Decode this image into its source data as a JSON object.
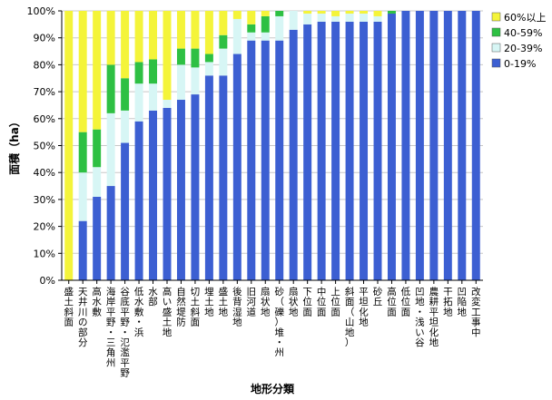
{
  "chart_data": {
    "type": "bar",
    "stacked": true,
    "normalized": true,
    "xlabel": "地形分類",
    "ylabel": "面積（ha）",
    "ylim": [
      0,
      100
    ],
    "yticks": [
      "0%",
      "10%",
      "20%",
      "30%",
      "40%",
      "50%",
      "60%",
      "70%",
      "80%",
      "90%",
      "100%"
    ],
    "legend_position": "right",
    "categories": [
      "盛土斜面",
      "天井川の部分",
      "高水敷",
      "海岸平野・三角州",
      "谷底平野・氾濫平野",
      "低水敷・浜",
      "水部",
      "高い盛土地",
      "自然堤防",
      "切土斜面",
      "埋土地",
      "盛土地",
      "後背湿地",
      "旧河道",
      "扇状地",
      "砂（礫）堆・州",
      "扇状地",
      "下位面",
      "中位面",
      "上位面",
      "斜面（山地）",
      "平坦化地",
      "砂丘",
      "高位面",
      "低位面",
      "凹地・浅い谷",
      "農耕平坦化地",
      "干拓地",
      "凹陥地",
      "改変工事中"
    ],
    "series": [
      {
        "name": "0-19%",
        "color": "#3c5fd2",
        "values": [
          0,
          22,
          31,
          35,
          51,
          59,
          63,
          64,
          67,
          69,
          76,
          76,
          84,
          89,
          89,
          89,
          93,
          95,
          96,
          96,
          96,
          96,
          96,
          99,
          100,
          100,
          100,
          100,
          100,
          100
        ]
      },
      {
        "name": "20-39%",
        "color": "#d7f6f5",
        "values": [
          0,
          18,
          11,
          27,
          12,
          14,
          10,
          3,
          13,
          10,
          5,
          10,
          13,
          3,
          3,
          9,
          7,
          4,
          3,
          2,
          3,
          3,
          2,
          0,
          0,
          0,
          0,
          0,
          0,
          0
        ]
      },
      {
        "name": "40-59%",
        "color": "#2ec043",
        "values": [
          0,
          15,
          14,
          18,
          12,
          8,
          9,
          0,
          6,
          7,
          3,
          5,
          0,
          3,
          6,
          2,
          0,
          0,
          0,
          0,
          0,
          0,
          0,
          1,
          0,
          0,
          0,
          0,
          0,
          0
        ]
      },
      {
        "name": "60%以上",
        "color": "#f4f43a",
        "values": [
          100,
          45,
          44,
          20,
          25,
          19,
          18,
          33,
          14,
          14,
          16,
          9,
          3,
          5,
          2,
          0,
          0,
          1,
          1,
          2,
          1,
          1,
          2,
          0,
          0,
          0,
          0,
          0,
          0,
          0
        ]
      }
    ]
  }
}
